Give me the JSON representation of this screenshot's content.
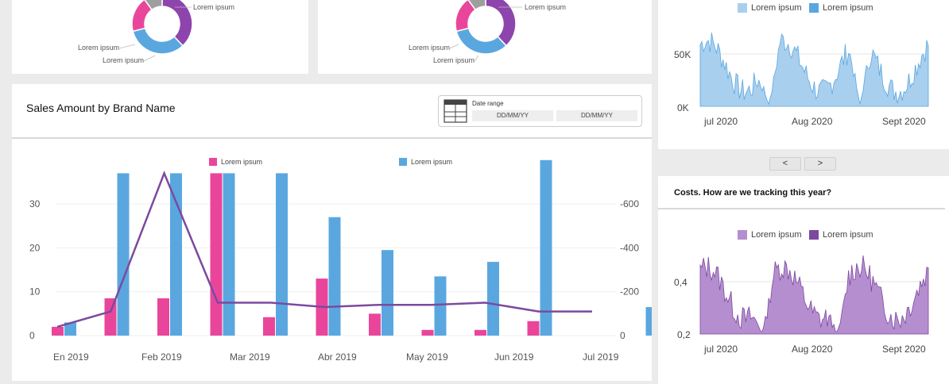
{
  "donut_left": {
    "labels": [
      "Lorem ipsum",
      "Lorem ipsum",
      "Lorem ipsum"
    ],
    "slices": [
      {
        "value": 38,
        "color": "#8e44ad"
      },
      {
        "value": 33,
        "color": "#5aa7e0"
      },
      {
        "value": 19,
        "color": "#e9469b"
      },
      {
        "value": 10,
        "color": "#9e9e9e"
      }
    ]
  },
  "donut_mid": {
    "labels": [
      "Lorem ipsum",
      "Lorem ipsum",
      "Lorem ipsum"
    ],
    "slices": [
      {
        "value": 38,
        "color": "#8e44ad"
      },
      {
        "value": 33,
        "color": "#5aa7e0"
      },
      {
        "value": 19,
        "color": "#e9469b"
      },
      {
        "value": 10,
        "color": "#9e9e9e"
      }
    ]
  },
  "sales": {
    "title": "Sales Amount by Brand Name",
    "date_range": {
      "label": "Date range",
      "from_placeholder": "DD/MM/YY",
      "to_placeholder": "DD/MM/YY"
    }
  },
  "chart_data": [
    {
      "type": "bar",
      "categories": [
        "En 2019",
        "",
        "Feb 2019",
        "",
        "Mar 2019",
        "",
        "Abr 2019",
        "",
        "May 2019",
        "",
        "Jun 2019",
        "",
        "Jul 2019"
      ],
      "x_tick_labels": [
        "En 2019",
        "Feb 2019",
        "Mar 2019",
        "Abr 2019",
        "May 2019",
        "Jun 2019",
        "Jul 2019"
      ],
      "series": [
        {
          "name": "Lorem ipsum",
          "color": "#e9469b",
          "values": [
            2,
            8.5,
            8.5,
            37,
            4.2,
            13,
            5,
            1.3,
            1.3,
            3.3,
            null,
            null,
            null
          ]
        },
        {
          "name": "Lorem ipsum",
          "color": "#5aa7e0",
          "values": [
            3,
            37,
            37,
            37,
            37,
            27,
            19.5,
            13.5,
            16.8,
            40,
            null,
            6.5,
            null
          ]
        }
      ],
      "line": {
        "color": "#7b4a9e",
        "values": [
          2,
          5.5,
          37,
          7.5,
          7.5,
          6.5,
          7.0,
          7.0,
          7.5,
          5.5,
          5.5
        ]
      },
      "y_left_ticks": [
        "0",
        "10",
        "20",
        "30"
      ],
      "y_right_ticks": [
        "0",
        "-200",
        "-400",
        "-600"
      ],
      "ylim": [
        0,
        40
      ]
    },
    {
      "type": "area",
      "x_tick_labels": [
        "jul 2020",
        "Aug 2020",
        "Sept 2020"
      ],
      "y_ticks": [
        "0K",
        "50K"
      ],
      "series": [
        {
          "name": "Lorem ipsum",
          "color": "#a8cfee"
        },
        {
          "name": "Lorem ipsum",
          "color": "#5aa7e0"
        }
      ]
    },
    {
      "type": "area",
      "title": "Costs. How are we tracking this year?",
      "x_tick_labels": [
        "jul 2020",
        "Aug 2020",
        "Sept 2020"
      ],
      "y_ticks": [
        "0,2",
        "0,4"
      ],
      "series": [
        {
          "name": "Lorem ipsum",
          "color": "#b58ed0"
        },
        {
          "name": "Lorem ipsum",
          "color": "#7b4a9e"
        }
      ]
    }
  ],
  "legend": {
    "pink": "Lorem ipsum",
    "blue": "Lorem ipsum"
  },
  "nav": {
    "prev": "<",
    "next": ">"
  }
}
